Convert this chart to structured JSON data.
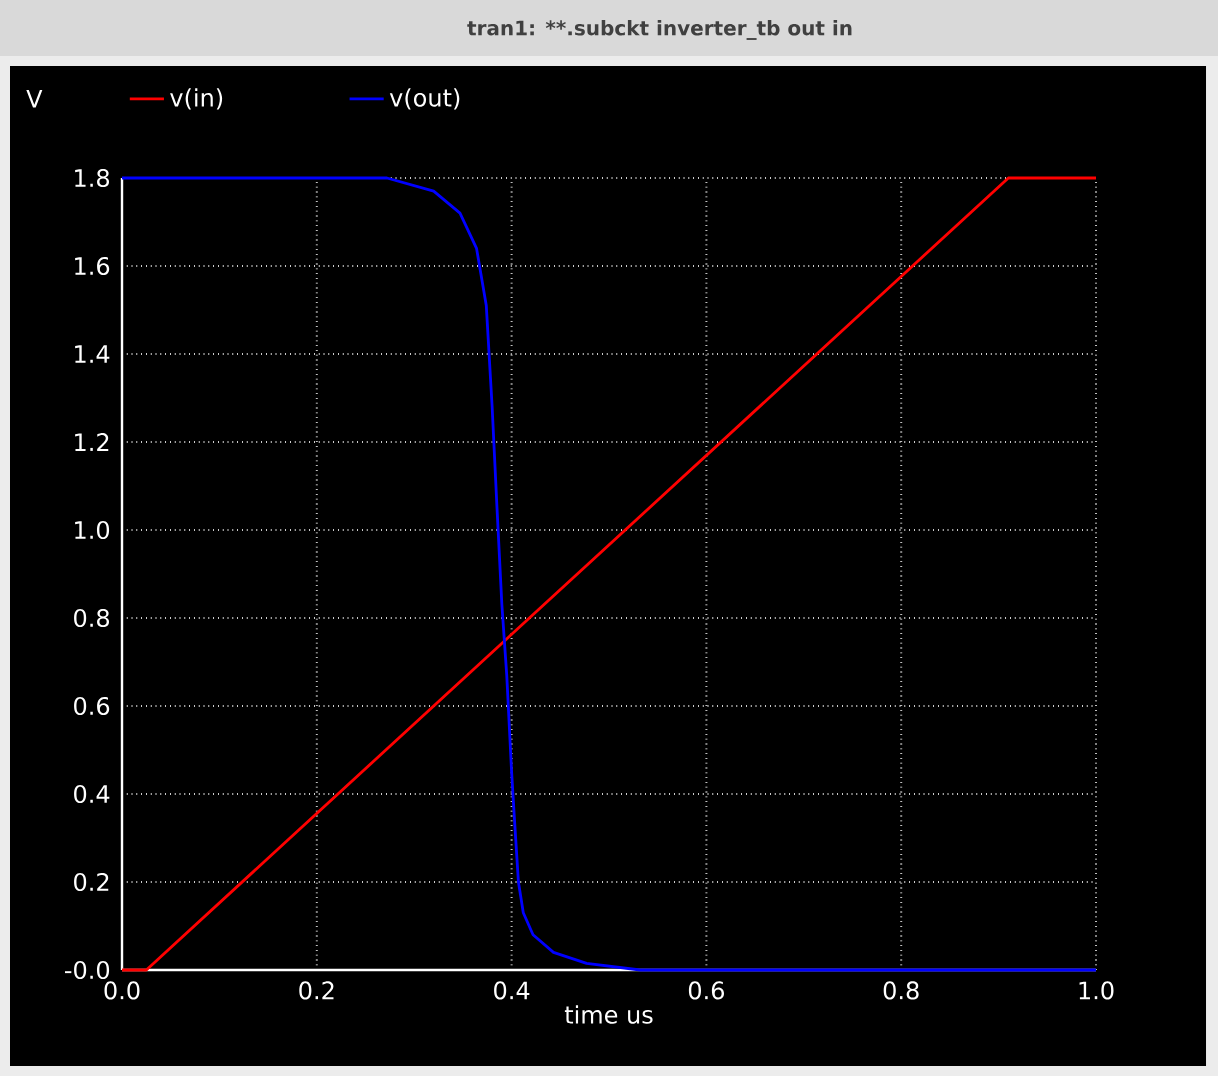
{
  "chart_data": {
    "type": "line",
    "title": "tran1: **.subckt inverter_tb out in",
    "xlabel": "time us",
    "ylabel": "V",
    "series": [
      {
        "name": "v(in)",
        "color": "#ff0000",
        "x": [
          0,
          0.025,
          0.91,
          1.0
        ],
        "values": [
          0,
          0,
          1.8,
          1.8
        ]
      },
      {
        "name": "v(out)",
        "color": "#0000ff",
        "x": [
          0,
          0.272,
          0.32,
          0.347,
          0.364,
          0.374,
          0.38,
          0.385,
          0.39,
          0.395,
          0.4,
          0.403,
          0.407,
          0.412,
          0.422,
          0.443,
          0.477,
          0.532,
          1.0
        ],
        "values": [
          1.8,
          1.8,
          1.77,
          1.72,
          1.64,
          1.51,
          1.28,
          1.05,
          0.83,
          0.67,
          0.45,
          0.34,
          0.2,
          0.13,
          0.08,
          0.04,
          0.015,
          0,
          0
        ]
      }
    ],
    "xlim": [
      0,
      1.0
    ],
    "ylim": [
      0,
      1.8
    ],
    "xticks": [
      {
        "value": 0,
        "label": "0.0"
      },
      0.2,
      0.4,
      0.6,
      0.8,
      {
        "value": 1.0,
        "label": "1.0"
      }
    ],
    "yticks": [
      {
        "value": 0,
        "label": "-0.0"
      },
      0.2,
      0.4,
      0.6,
      0.8,
      {
        "value": 1.0,
        "label": "1.0"
      },
      1.2,
      1.4,
      1.6,
      1.8
    ],
    "grid": true,
    "legend": "top",
    "marker": "none",
    "line_style": "solid"
  }
}
